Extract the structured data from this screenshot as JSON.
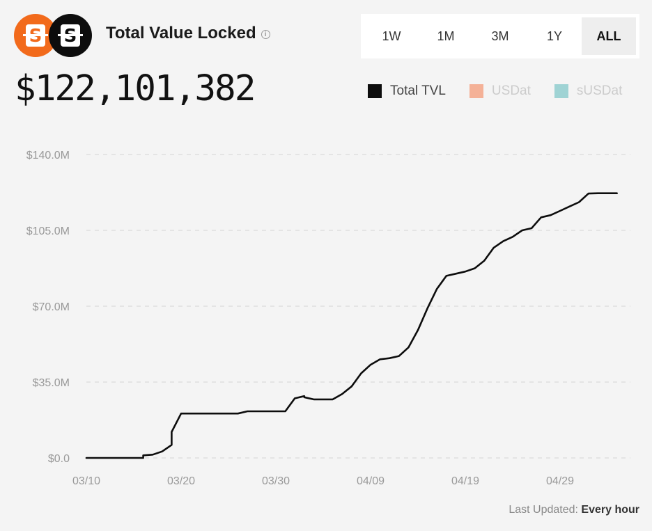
{
  "header": {
    "title": "Total Value Locked",
    "value": "$122,101,382",
    "logo_letters": [
      "S",
      "S"
    ]
  },
  "tabs": [
    {
      "label": "1W",
      "active": false
    },
    {
      "label": "1M",
      "active": false
    },
    {
      "label": "3M",
      "active": false
    },
    {
      "label": "1Y",
      "active": false
    },
    {
      "label": "ALL",
      "active": true
    }
  ],
  "legend": [
    {
      "label": "Total TVL",
      "color": "#0d0d0d",
      "text_color": "#444444"
    },
    {
      "label": "USDat",
      "color": "#f4b197",
      "text_color": "#cccccc"
    },
    {
      "label": "sUSDat",
      "color": "#9fd3d4",
      "text_color": "#cccccc"
    }
  ],
  "footer": {
    "label": "Last Updated:",
    "value": "Every hour"
  },
  "colors": {
    "accent": "#f26a1b",
    "line": "#0d0d0d",
    "grid": "#d4d4d4",
    "background": "#f4f4f4"
  },
  "chart_data": {
    "type": "line",
    "x_ticks": [
      "03/10",
      "03/20",
      "03/30",
      "04/09",
      "04/19",
      "04/29"
    ],
    "y_ticks": [
      "$0.0",
      "$35.0M",
      "$70.0M",
      "$105.0M",
      "$140.0M"
    ],
    "ylim": [
      0,
      140
    ],
    "y_unit": "$M",
    "grid": true,
    "legend_position": "top-right",
    "series": [
      {
        "name": "Total TVL",
        "x": [
          "03/10",
          "03/16",
          "03/16",
          "03/17",
          "03/18",
          "03/19",
          "03/19",
          "03/20",
          "03/20",
          "03/26",
          "03/27",
          "03/31",
          "04/01",
          "04/02",
          "04/02",
          "04/03",
          "04/05",
          "04/06",
          "04/07",
          "04/08",
          "04/09",
          "04/10",
          "04/11",
          "04/12",
          "04/13",
          "04/14",
          "04/15",
          "04/16",
          "04/17",
          "04/18",
          "04/19",
          "04/20",
          "04/21",
          "04/22",
          "04/23",
          "04/24",
          "04/25",
          "04/26",
          "04/27",
          "04/28",
          "04/29",
          "04/30",
          "05/01",
          "05/02",
          "05/03",
          "05/04",
          "05/05"
        ],
        "values": [
          0,
          0,
          1.2,
          1.5,
          3,
          6,
          12,
          20.5,
          20.5,
          20.5,
          21.5,
          21.5,
          27.5,
          28.5,
          28,
          27,
          27,
          29.5,
          33,
          39,
          43,
          45.5,
          46,
          47,
          51,
          59,
          69,
          78,
          84,
          85,
          86,
          87.5,
          91,
          97,
          100,
          102,
          105,
          106,
          111,
          112,
          114,
          116,
          118,
          122,
          122.1,
          122.1,
          122.1
        ]
      }
    ]
  }
}
